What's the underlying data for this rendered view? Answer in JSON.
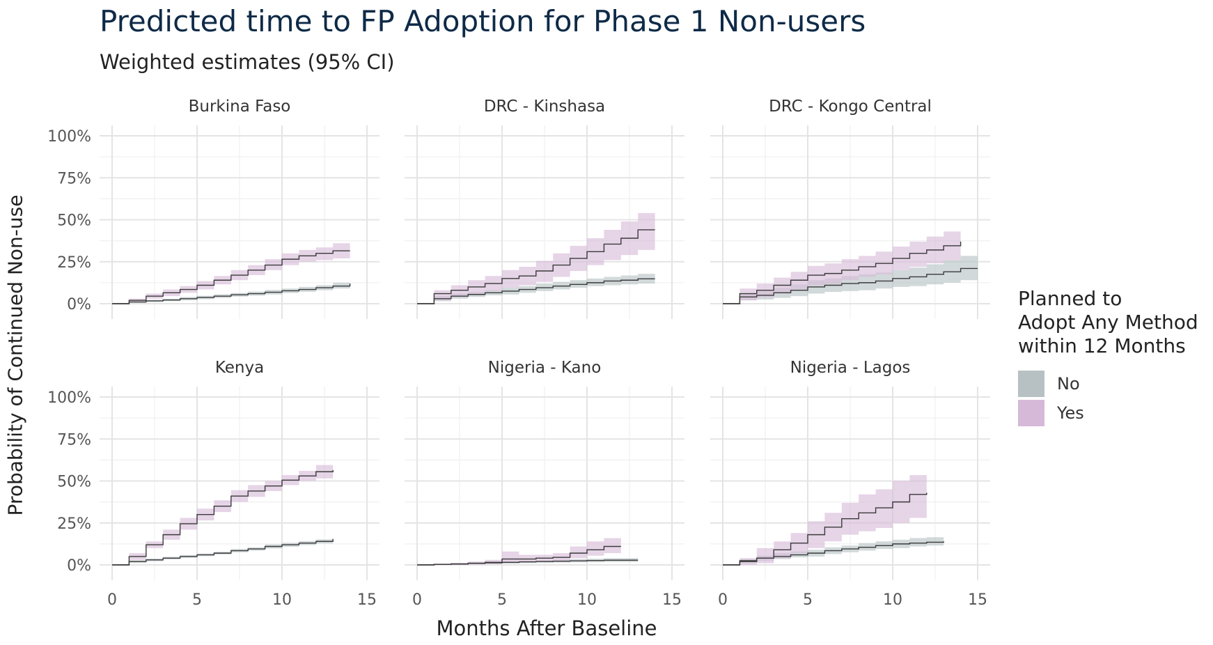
{
  "title": "Predicted time to FP Adoption for Phase 1 Non-users",
  "subtitle": "Weighted estimates (95% CI)",
  "colors": {
    "no": "#b7c1c3",
    "yes": "#d6b9d8",
    "line": "#3a3a3a",
    "grid_major": "#e4e4e4",
    "grid_minor": "#f0f0f0"
  },
  "legend": {
    "title_lines": [
      "Planned to",
      "Adopt Any Method",
      "within 12 Months"
    ],
    "items": [
      {
        "label": "No",
        "color": "#b7c1c3"
      },
      {
        "label": "Yes",
        "color": "#d6b9d8"
      }
    ]
  },
  "chart_data": {
    "type": "line",
    "xlabel": "Months After Baseline",
    "ylabel": "Probability of Continued Non-use",
    "xlim": [
      0,
      15
    ],
    "ylim": [
      0,
      1
    ],
    "x_ticks": [
      "0",
      "5",
      "10",
      "15"
    ],
    "y_ticks": [
      "0%",
      "25%",
      "50%",
      "75%",
      "100%"
    ],
    "grid": true,
    "legend_position": "right",
    "panels": [
      {
        "name": "Burkina Faso",
        "series": [
          {
            "name": "No",
            "x": [
              0,
              1,
              2,
              3,
              4,
              5,
              6,
              7,
              8,
              9,
              10,
              11,
              12,
              13,
              14
            ],
            "values": [
              0,
              0.01,
              0.017,
              0.022,
              0.03,
              0.037,
              0.045,
              0.053,
              0.06,
              0.068,
              0.077,
              0.085,
              0.095,
              0.105,
              0.12
            ],
            "lower": [
              0,
              0.005,
              0.01,
              0.015,
              0.02,
              0.027,
              0.034,
              0.042,
              0.048,
              0.055,
              0.064,
              0.071,
              0.08,
              0.09,
              0.1
            ],
            "upper": [
              0,
              0.015,
              0.023,
              0.03,
              0.04,
              0.047,
              0.056,
              0.064,
              0.072,
              0.082,
              0.09,
              0.1,
              0.11,
              0.125,
              0.14
            ]
          },
          {
            "name": "Yes",
            "x": [
              0,
              1,
              2,
              3,
              4,
              5,
              6,
              7,
              8,
              9,
              10,
              11,
              12,
              13,
              14
            ],
            "values": [
              0,
              0.02,
              0.045,
              0.065,
              0.085,
              0.11,
              0.14,
              0.17,
              0.2,
              0.23,
              0.265,
              0.285,
              0.3,
              0.315,
              0.315
            ],
            "lower": [
              0,
              0.01,
              0.03,
              0.045,
              0.065,
              0.085,
              0.115,
              0.14,
              0.17,
              0.2,
              0.23,
              0.25,
              0.26,
              0.27,
              0.27
            ],
            "upper": [
              0,
              0.03,
              0.06,
              0.085,
              0.105,
              0.135,
              0.165,
              0.2,
              0.23,
              0.265,
              0.3,
              0.32,
              0.335,
              0.36,
              0.36
            ]
          }
        ]
      },
      {
        "name": "DRC - Kinshasa",
        "series": [
          {
            "name": "No",
            "x": [
              0,
              1,
              2,
              3,
              4,
              5,
              6,
              7,
              8,
              9,
              10,
              11,
              12,
              13,
              14
            ],
            "values": [
              0,
              0.03,
              0.045,
              0.055,
              0.065,
              0.075,
              0.085,
              0.095,
              0.105,
              0.115,
              0.125,
              0.135,
              0.14,
              0.148,
              0.148
            ],
            "lower": [
              0,
              0.015,
              0.03,
              0.04,
              0.05,
              0.055,
              0.065,
              0.075,
              0.085,
              0.095,
              0.105,
              0.11,
              0.115,
              0.12,
              0.12
            ],
            "upper": [
              0,
              0.045,
              0.06,
              0.07,
              0.08,
              0.095,
              0.105,
              0.12,
              0.13,
              0.14,
              0.15,
              0.16,
              0.168,
              0.178,
              0.178
            ]
          },
          {
            "name": "Yes",
            "x": [
              0,
              1,
              2,
              3,
              4,
              5,
              6,
              7,
              8,
              9,
              10,
              11,
              12,
              13,
              14
            ],
            "values": [
              0,
              0.06,
              0.08,
              0.1,
              0.12,
              0.15,
              0.165,
              0.195,
              0.23,
              0.27,
              0.31,
              0.355,
              0.39,
              0.44,
              0.44
            ],
            "lower": [
              0,
              0.02,
              0.04,
              0.055,
              0.075,
              0.095,
              0.11,
              0.13,
              0.16,
              0.195,
              0.23,
              0.26,
              0.29,
              0.32,
              0.32
            ],
            "upper": [
              0,
              0.08,
              0.11,
              0.14,
              0.165,
              0.2,
              0.22,
              0.255,
              0.3,
              0.345,
              0.39,
              0.44,
              0.49,
              0.54,
              0.54
            ]
          }
        ]
      },
      {
        "name": "DRC - Kongo Central",
        "series": [
          {
            "name": "No",
            "x": [
              0,
              1,
              2,
              3,
              4,
              5,
              6,
              7,
              8,
              9,
              10,
              11,
              12,
              13,
              14,
              15
            ],
            "values": [
              0,
              0.04,
              0.05,
              0.065,
              0.08,
              0.1,
              0.11,
              0.12,
              0.125,
              0.135,
              0.15,
              0.16,
              0.175,
              0.19,
              0.21,
              0.21
            ],
            "lower": [
              0,
              0.02,
              0.025,
              0.035,
              0.045,
              0.06,
              0.07,
              0.075,
              0.08,
              0.09,
              0.1,
              0.105,
              0.115,
              0.125,
              0.14,
              0.14
            ],
            "upper": [
              0,
              0.06,
              0.075,
              0.095,
              0.115,
              0.14,
              0.15,
              0.165,
              0.175,
              0.185,
              0.2,
              0.215,
              0.235,
              0.26,
              0.285,
              0.285
            ]
          },
          {
            "name": "Yes",
            "x": [
              0,
              1,
              2,
              3,
              4,
              5,
              6,
              7,
              8,
              9,
              10,
              11,
              12,
              13,
              14
            ],
            "values": [
              0,
              0.06,
              0.08,
              0.11,
              0.14,
              0.17,
              0.18,
              0.2,
              0.22,
              0.24,
              0.27,
              0.3,
              0.32,
              0.345,
              0.37
            ],
            "lower": [
              0,
              0.02,
              0.04,
              0.06,
              0.085,
              0.11,
              0.12,
              0.14,
              0.16,
              0.175,
              0.2,
              0.22,
              0.24,
              0.26,
              0.28
            ],
            "upper": [
              0,
              0.09,
              0.12,
              0.155,
              0.19,
              0.225,
              0.24,
              0.265,
              0.285,
              0.31,
              0.34,
              0.37,
              0.4,
              0.43,
              0.46
            ]
          }
        ]
      },
      {
        "name": "Kenya",
        "series": [
          {
            "name": "No",
            "x": [
              0,
              1,
              2,
              3,
              4,
              5,
              6,
              7,
              8,
              9,
              10,
              11,
              12,
              13
            ],
            "values": [
              0,
              0.02,
              0.03,
              0.04,
              0.05,
              0.06,
              0.07,
              0.085,
              0.095,
              0.11,
              0.12,
              0.13,
              0.14,
              0.155
            ],
            "lower": [
              0,
              0.012,
              0.022,
              0.032,
              0.042,
              0.052,
              0.062,
              0.075,
              0.085,
              0.098,
              0.108,
              0.118,
              0.128,
              0.14
            ],
            "upper": [
              0,
              0.028,
              0.038,
              0.048,
              0.058,
              0.068,
              0.078,
              0.095,
              0.105,
              0.122,
              0.132,
              0.142,
              0.152,
              0.17
            ]
          },
          {
            "name": "Yes",
            "x": [
              0,
              1,
              2,
              3,
              4,
              5,
              6,
              7,
              8,
              9,
              10,
              11,
              12,
              13
            ],
            "values": [
              0,
              0.05,
              0.12,
              0.18,
              0.245,
              0.3,
              0.35,
              0.41,
              0.44,
              0.47,
              0.505,
              0.53,
              0.555,
              0.565
            ],
            "lower": [
              0,
              0.03,
              0.1,
              0.15,
              0.21,
              0.265,
              0.315,
              0.375,
              0.405,
              0.44,
              0.475,
              0.5,
              0.515,
              0.515
            ],
            "upper": [
              0,
              0.07,
              0.14,
              0.21,
              0.28,
              0.335,
              0.385,
              0.445,
              0.475,
              0.5,
              0.535,
              0.56,
              0.595,
              0.61
            ]
          }
        ]
      },
      {
        "name": "Nigeria - Kano",
        "series": [
          {
            "name": "No",
            "x": [
              0,
              1,
              2,
              3,
              4,
              5,
              6,
              7,
              8,
              9,
              10,
              11,
              12,
              13
            ],
            "values": [
              0,
              0.003,
              0.006,
              0.009,
              0.012,
              0.015,
              0.018,
              0.02,
              0.022,
              0.024,
              0.026,
              0.028,
              0.028,
              0.028
            ],
            "lower": [
              0,
              0.001,
              0.003,
              0.005,
              0.007,
              0.009,
              0.011,
              0.013,
              0.014,
              0.015,
              0.016,
              0.017,
              0.017,
              0.017
            ],
            "upper": [
              0,
              0.006,
              0.01,
              0.013,
              0.017,
              0.021,
              0.025,
              0.028,
              0.031,
              0.034,
              0.037,
              0.04,
              0.04,
              0.04
            ]
          },
          {
            "name": "Yes",
            "x": [
              0,
              1,
              2,
              3,
              4,
              5,
              6,
              7,
              8,
              9,
              10,
              11,
              12
            ],
            "values": [
              0,
              0.003,
              0.005,
              0.01,
              0.015,
              0.035,
              0.035,
              0.04,
              0.045,
              0.07,
              0.09,
              0.11,
              0.11
            ],
            "lower": [
              0,
              0,
              0,
              0.003,
              0.005,
              0.015,
              0.015,
              0.02,
              0.025,
              0.04,
              0.055,
              0.07,
              0.07
            ],
            "upper": [
              0,
              0.008,
              0.012,
              0.02,
              0.03,
              0.08,
              0.06,
              0.06,
              0.07,
              0.11,
              0.14,
              0.16,
              0.16
            ]
          }
        ]
      },
      {
        "name": "Nigeria - Lagos",
        "series": [
          {
            "name": "No",
            "x": [
              0,
              1,
              2,
              3,
              4,
              5,
              6,
              7,
              8,
              9,
              10,
              11,
              12,
              13
            ],
            "values": [
              0,
              0.02,
              0.04,
              0.05,
              0.06,
              0.07,
              0.085,
              0.095,
              0.105,
              0.115,
              0.125,
              0.13,
              0.135,
              0.14
            ],
            "lower": [
              0,
              0.01,
              0.025,
              0.035,
              0.045,
              0.05,
              0.065,
              0.075,
              0.085,
              0.095,
              0.1,
              0.11,
              0.115,
              0.115
            ],
            "upper": [
              0,
              0.035,
              0.055,
              0.07,
              0.08,
              0.09,
              0.105,
              0.115,
              0.13,
              0.14,
              0.15,
              0.16,
              0.165,
              0.17
            ]
          },
          {
            "name": "Yes",
            "x": [
              0,
              1,
              2,
              3,
              4,
              5,
              6,
              7,
              8,
              9,
              10,
              11,
              12
            ],
            "values": [
              0,
              0.025,
              0.04,
              0.09,
              0.13,
              0.18,
              0.225,
              0.275,
              0.31,
              0.34,
              0.375,
              0.42,
              0.43
            ],
            "lower": [
              0,
              0,
              0.01,
              0.04,
              0.07,
              0.1,
              0.14,
              0.18,
              0.2,
              0.22,
              0.25,
              0.28,
              0.28
            ],
            "upper": [
              0,
              0.04,
              0.1,
              0.14,
              0.19,
              0.26,
              0.31,
              0.37,
              0.42,
              0.45,
              0.5,
              0.535,
              0.535
            ]
          }
        ]
      }
    ]
  }
}
